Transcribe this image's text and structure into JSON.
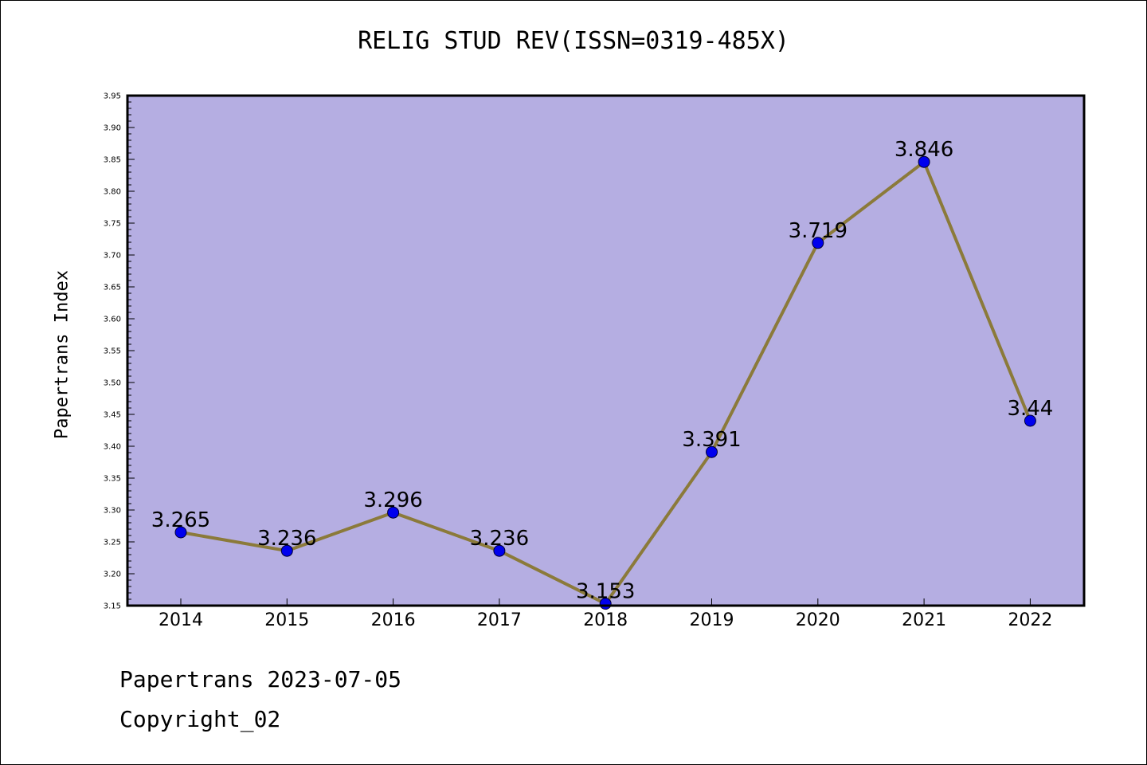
{
  "title": "RELIG STUD REV(ISSN=0319-485X)",
  "footer": {
    "line1": "Papertrans 2023-07-05",
    "line2": "Copyright_02"
  },
  "colors": {
    "plot_background": "#b5aee2",
    "line": "#8b7a3a",
    "marker": "#0000ee",
    "axis": "#000000"
  },
  "chart_data": {
    "type": "line",
    "title": "RELIG STUD REV(ISSN=0319-485X)",
    "xlabel": "",
    "ylabel": "Papertrans Index",
    "categories": [
      "2014",
      "2015",
      "2016",
      "2017",
      "2018",
      "2019",
      "2020",
      "2021",
      "2022"
    ],
    "series": [
      {
        "values": [
          3.265,
          3.236,
          3.296,
          3.236,
          3.153,
          3.391,
          3.719,
          3.846,
          3.44
        ],
        "data_labels": [
          "3.265",
          "3.236",
          "3.296",
          "3.236",
          "3.153",
          "3.391",
          "3.719",
          "3.846",
          "3.44"
        ]
      }
    ],
    "ylim": [
      3.15,
      3.95
    ],
    "yticks": [
      "3.15",
      "3.20",
      "3.25",
      "3.30",
      "3.35",
      "3.40",
      "3.45",
      "3.50",
      "3.55",
      "3.60",
      "3.65",
      "3.70",
      "3.75",
      "3.80",
      "3.85",
      "3.90",
      "3.95"
    ],
    "grid": false,
    "legend": "none"
  }
}
